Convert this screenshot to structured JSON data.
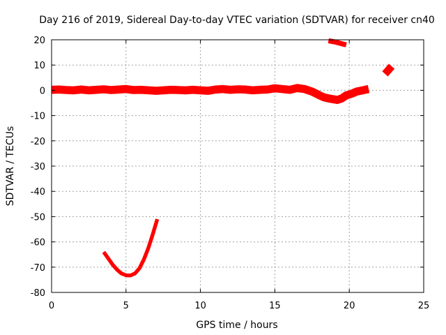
{
  "chart_data": {
    "type": "line",
    "title": "Day 216 of 2019, Sidereal Day-to-day VTEC variation (SDTVAR) for receiver cn40",
    "xlabel": "GPS time / hours",
    "ylabel": "SDTVAR / TECUs",
    "xlim": [
      0,
      25
    ],
    "ylim": [
      -80,
      20
    ],
    "xticks": [
      0,
      5,
      10,
      15,
      20,
      25
    ],
    "yticks": [
      -80,
      -70,
      -60,
      -50,
      -40,
      -30,
      -20,
      -10,
      0,
      10,
      20
    ],
    "xtick_labels": [
      "0",
      "5",
      "10",
      "15",
      "20",
      "25"
    ],
    "ytick_labels": [
      "-80",
      "-70",
      "-60",
      "-50",
      "-40",
      "-30",
      "-20",
      "-10",
      "0",
      "10",
      "20"
    ],
    "grid": true,
    "series_color": "#ff0000",
    "series": [
      {
        "name": "main-trace",
        "x": [
          0,
          0.5,
          1,
          1.5,
          2,
          2.5,
          3,
          3.5,
          4,
          4.5,
          5,
          5.5,
          6,
          6.5,
          7,
          7.5,
          8,
          8.5,
          9,
          9.5,
          10,
          10.5,
          11,
          11.5,
          12,
          12.5,
          13,
          13.5,
          14,
          14.5,
          15,
          15.5,
          16,
          16.5,
          17,
          17.5,
          18,
          18.3,
          18.6,
          18.9,
          19.2,
          19.5,
          19.8,
          20.1,
          20.5,
          20.9,
          21.3
        ],
        "y": [
          0.2,
          0.3,
          0.1,
          0.0,
          0.3,
          0.0,
          0.2,
          0.4,
          0.1,
          0.3,
          0.5,
          0.1,
          0.2,
          0.0,
          -0.2,
          0.0,
          0.2,
          0.1,
          0.0,
          0.2,
          0.0,
          -0.2,
          0.3,
          0.5,
          0.2,
          0.4,
          0.3,
          0.0,
          0.2,
          0.3,
          0.8,
          0.5,
          0.2,
          0.9,
          0.5,
          -0.5,
          -2.0,
          -2.8,
          -3.2,
          -3.5,
          -3.8,
          -3.2,
          -2.0,
          -1.5,
          -0.5,
          0.0,
          0.5
        ],
        "width_data": 3.2
      },
      {
        "name": "upper-fragment",
        "x": [
          18.6,
          18.8,
          19.0,
          19.2,
          19.4,
          19.6,
          19.8
        ],
        "y": [
          19.6,
          19.4,
          19.2,
          18.9,
          18.6,
          18.3,
          18.0
        ],
        "width_data": 2.0
      },
      {
        "name": "right-fragment",
        "x": [
          22.4,
          22.55,
          22.7,
          22.85
        ],
        "y": [
          6.5,
          7.5,
          8.5,
          9.5
        ],
        "width_data": 3.0
      },
      {
        "name": "v-curve",
        "x": [
          3.5,
          3.8,
          4.1,
          4.4,
          4.7,
          5.0,
          5.3,
          5.6,
          5.9,
          6.2,
          6.5,
          6.8,
          7.1
        ],
        "y": [
          -64.0,
          -66.5,
          -69.0,
          -71.0,
          -72.5,
          -73.2,
          -73.3,
          -72.5,
          -70.5,
          -67.0,
          -62.5,
          -57.0,
          -51.0
        ],
        "width_data": 1.5
      }
    ]
  }
}
